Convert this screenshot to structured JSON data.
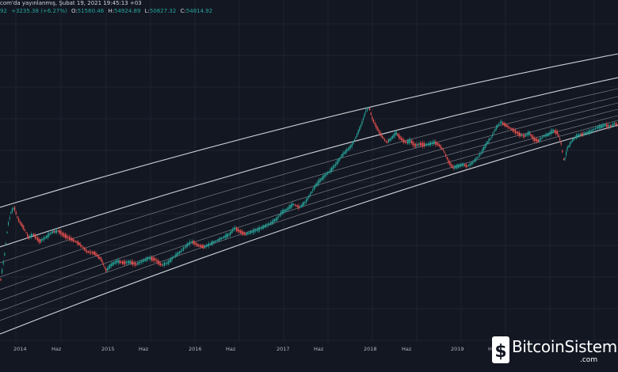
{
  "header": {
    "published": "com'da yayınlanmış, Şubat 19, 2021 19:45:13 +03",
    "close_fragment": "92",
    "change": "+3235.38 (+6.27%)",
    "o_label": "O:",
    "o_value": "51560.46",
    "h_label": "H:",
    "h_value": "54924.89",
    "l_label": "L:",
    "l_value": "50627.32",
    "c_label": "C:",
    "c_value": "54814.92"
  },
  "x_axis": {
    "labels": [
      "2014",
      "Haz",
      "2015",
      "Haz",
      "2016",
      "Haz",
      "2017",
      "Haz",
      "2018",
      "Haz",
      "2019",
      "Haz"
    ]
  },
  "watermark": {
    "brand": "BitcoinSistemi",
    "suffix": ".com"
  },
  "colors": {
    "background": "#131722",
    "grid": "#1f2330",
    "up": "#26a69a",
    "down": "#ef5350",
    "channel_line": "#d8dbe2",
    "value_text": "#26a69a"
  },
  "chart_data": {
    "type": "candlestick",
    "series_trend": [
      {
        "date": "2013-11",
        "level": "rise"
      },
      {
        "date": "2013-12",
        "level": "peak"
      },
      {
        "date": "2015-01",
        "level": "low"
      },
      {
        "date": "2017-12",
        "level": "peak"
      },
      {
        "date": "2018-12",
        "level": "low"
      },
      {
        "date": "2019-06",
        "level": "high"
      },
      {
        "date": "2020-03",
        "level": "dip"
      },
      {
        "date": "2021-02",
        "level": "high"
      }
    ],
    "overlay": "logarithmic growth channel (parallel curved lines)",
    "x_tick_labels": [
      "2014",
      "Haz",
      "2015",
      "Haz",
      "2016",
      "Haz",
      "2017",
      "Haz",
      "2018",
      "Haz",
      "2019",
      "Haz"
    ],
    "grid": true
  }
}
